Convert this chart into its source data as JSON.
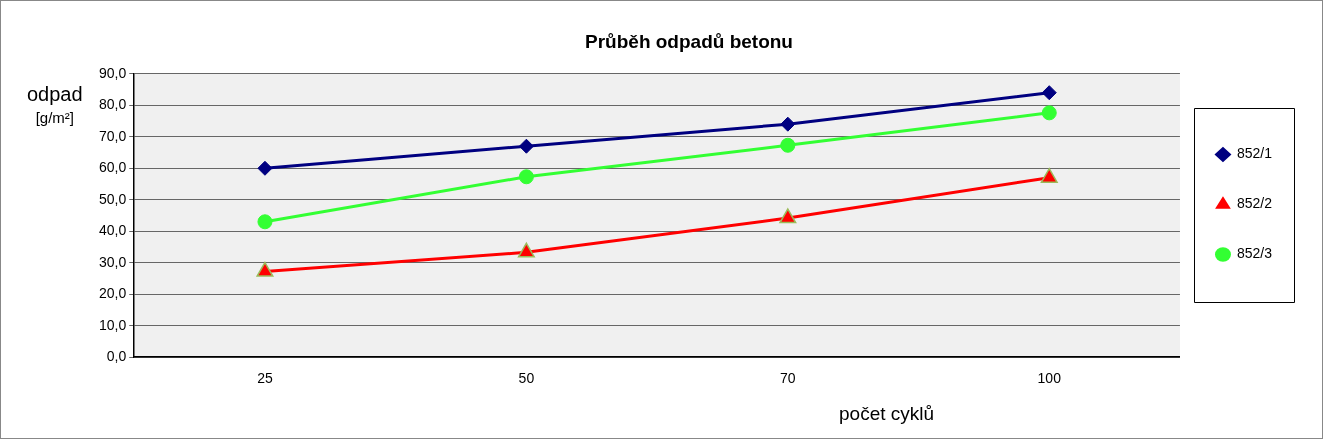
{
  "chart_data": {
    "type": "line",
    "title": "Průběh odpadů betonu",
    "xlabel": "počet cyklů",
    "ylabel": "odpad [g/m²]",
    "categories": [
      "25",
      "50",
      "70",
      "100"
    ],
    "series": [
      {
        "name": "852/1",
        "color": "#000080",
        "marker": "diamond",
        "values": [
          60,
          67,
          74,
          84
        ]
      },
      {
        "name": "852/2",
        "color": "#ff0000",
        "marker": "triangle",
        "values": [
          27.2,
          33.3,
          44.2,
          57
        ]
      },
      {
        "name": "852/3",
        "color": "#33ff33",
        "marker": "circle",
        "values": [
          43,
          57.3,
          67.3,
          77.6
        ]
      }
    ],
    "ylim": [
      0,
      90
    ],
    "yticks": [
      {
        "value": 0,
        "label": "0,0"
      },
      {
        "value": 10,
        "label": "10,0"
      },
      {
        "value": 20,
        "label": "20,0"
      },
      {
        "value": 30,
        "label": "30,0"
      },
      {
        "value": 40,
        "label": "40,0"
      },
      {
        "value": 50,
        "label": "50,0"
      },
      {
        "value": 60,
        "label": "60,0"
      },
      {
        "value": 70,
        "label": "70,0"
      },
      {
        "value": 80,
        "label": "80,0"
      },
      {
        "value": 90,
        "label": "90,0"
      }
    ],
    "grid": "y",
    "legend": "right"
  }
}
